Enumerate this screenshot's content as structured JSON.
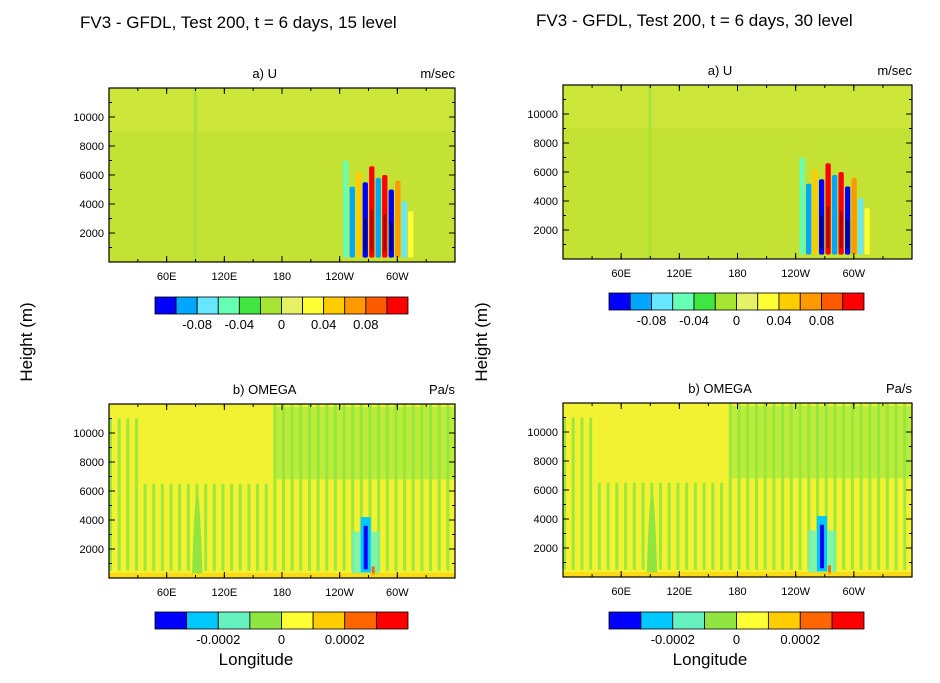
{
  "figure": {
    "column_titles": [
      "FV3 - GFDL, Test 200, t = 6 days, 15 level",
      "FV3 - GFDL, Test 200, t = 6 days, 30 level"
    ],
    "ylabel": "Height (m)",
    "xlabel": "Longitude"
  },
  "chart_data": [
    {
      "type": "heatmap",
      "id": "u15",
      "title": "a) U",
      "units": "m/sec",
      "x_ticks": [
        "60E",
        "120E",
        "180",
        "120W",
        "60W"
      ],
      "y_ticks": [
        2000,
        4000,
        6000,
        8000,
        10000
      ],
      "ylim": [
        0,
        12000
      ],
      "colorbar": {
        "labels": [
          "-0.08",
          "-0.04",
          "0",
          "0.04",
          "0.08"
        ],
        "colors": [
          "#0000ff",
          "#00a6ff",
          "#66e6ff",
          "#66ffb3",
          "#40e640",
          "#a6e633",
          "#e6f266",
          "#ffff33",
          "#ffcc00",
          "#ff9900",
          "#ff5a00",
          "#ff0000"
        ]
      },
      "background_color": "#c3e233"
    },
    {
      "type": "heatmap",
      "id": "u30",
      "title": "a) U",
      "units": "m/sec",
      "x_ticks": [
        "60E",
        "120E",
        "180",
        "120W",
        "60W"
      ],
      "y_ticks": [
        2000,
        4000,
        6000,
        8000,
        10000
      ],
      "ylim": [
        0,
        12000
      ],
      "colorbar": {
        "labels": [
          "-0.08",
          "-0.04",
          "0",
          "0.04",
          "0.08"
        ],
        "colors": [
          "#0000ff",
          "#00a6ff",
          "#66e6ff",
          "#66ffb3",
          "#40e640",
          "#a6e633",
          "#e6f266",
          "#ffff33",
          "#ffcc00",
          "#ff9900",
          "#ff5a00",
          "#ff0000"
        ]
      },
      "background_color": "#c3e233"
    },
    {
      "type": "heatmap",
      "id": "w15",
      "title": "b) OMEGA",
      "units": "Pa/s",
      "x_ticks": [
        "60E",
        "120E",
        "180",
        "120W",
        "60W"
      ],
      "y_ticks": [
        2000,
        4000,
        6000,
        8000,
        10000
      ],
      "ylim": [
        0,
        12000
      ],
      "colorbar": {
        "labels": [
          "-0.0002",
          "0",
          "0.0002"
        ],
        "colors": [
          "#0000ff",
          "#00c8ff",
          "#66f2c0",
          "#8fe640",
          "#ffff33",
          "#ffcc00",
          "#ff6600",
          "#ff0000"
        ]
      },
      "background_color": "#f2f233"
    },
    {
      "type": "heatmap",
      "id": "w30",
      "title": "b) OMEGA",
      "units": "Pa/s",
      "x_ticks": [
        "60E",
        "120E",
        "180",
        "120W",
        "60W"
      ],
      "y_ticks": [
        2000,
        4000,
        6000,
        8000,
        10000
      ],
      "ylim": [
        0,
        12000
      ],
      "colorbar": {
        "labels": [
          "-0.0002",
          "0",
          "0.0002"
        ],
        "colors": [
          "#0000ff",
          "#00c8ff",
          "#66f2c0",
          "#8fe640",
          "#ffff33",
          "#ffcc00",
          "#ff6600",
          "#ff0000"
        ]
      },
      "background_color": "#f2f233"
    }
  ]
}
